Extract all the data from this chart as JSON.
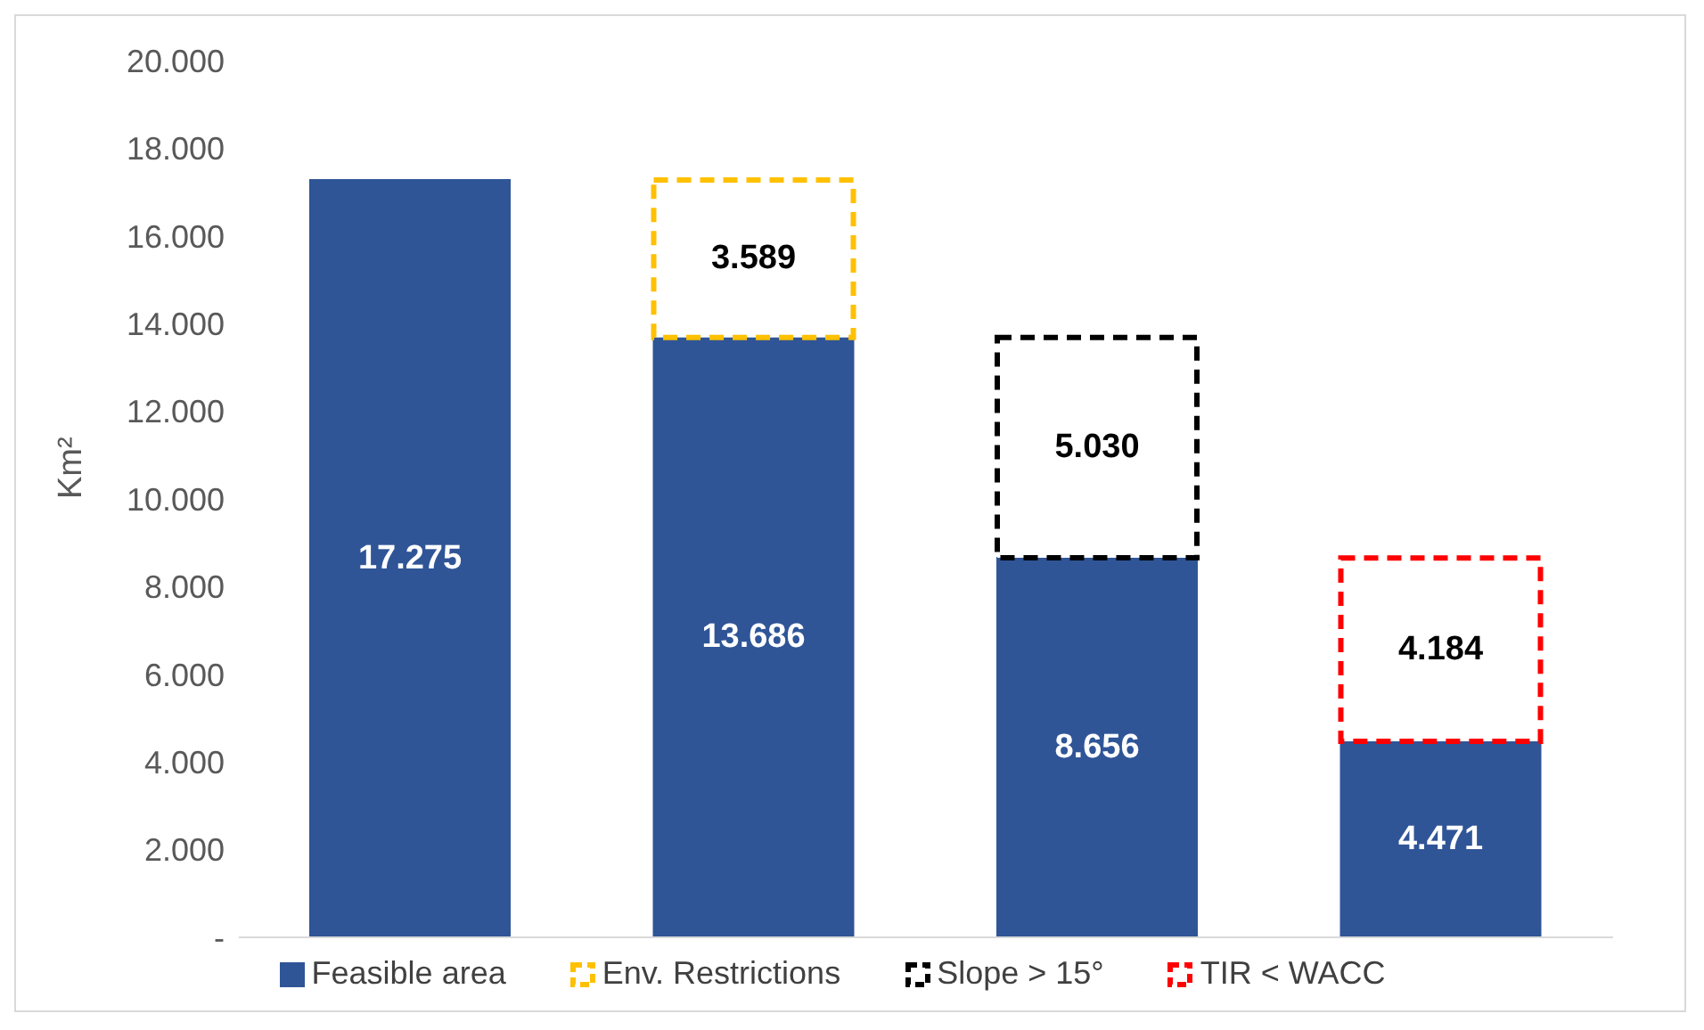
{
  "chart_data": {
    "type": "bar",
    "stacked": true,
    "ylabel": "Km²",
    "categories": [
      null,
      null,
      null,
      null
    ],
    "ylim": [
      0,
      20000
    ],
    "yticks": [
      {
        "value": 0,
        "label": "-"
      },
      {
        "value": 2000,
        "label": "2.000"
      },
      {
        "value": 4000,
        "label": "4.000"
      },
      {
        "value": 6000,
        "label": "6.000"
      },
      {
        "value": 8000,
        "label": "8.000"
      },
      {
        "value": 10000,
        "label": "10.000"
      },
      {
        "value": 12000,
        "label": "12.000"
      },
      {
        "value": 14000,
        "label": "14.000"
      },
      {
        "value": 16000,
        "label": "16.000"
      },
      {
        "value": 18000,
        "label": "18.000"
      },
      {
        "value": 20000,
        "label": "20.000"
      }
    ],
    "tick_labels": "y",
    "legend": "bottom",
    "grid": false,
    "series": [
      {
        "name": "Feasible area",
        "color": "#2f5597",
        "line_style": "solid",
        "values": [
          17275,
          13686,
          8656,
          4471
        ],
        "value_labels": [
          "17.275",
          "13.686",
          "8.656",
          "4.471"
        ]
      },
      {
        "name": "Env. Restrictions",
        "color": "#ffc000",
        "line_style": "dashed",
        "values": [
          null,
          3589,
          null,
          null
        ],
        "value_labels": [
          null,
          "3.589",
          null,
          null
        ]
      },
      {
        "name": "Slope > 15°",
        "color": "#000000",
        "line_style": "dashed",
        "values": [
          null,
          null,
          5030,
          null
        ],
        "value_labels": [
          null,
          null,
          "5.030",
          null
        ]
      },
      {
        "name": "TIR < WACC",
        "color": "#ff0000",
        "line_style": "dashed",
        "values": [
          null,
          null,
          null,
          4184
        ],
        "value_labels": [
          null,
          null,
          null,
          "4.184"
        ]
      }
    ]
  }
}
